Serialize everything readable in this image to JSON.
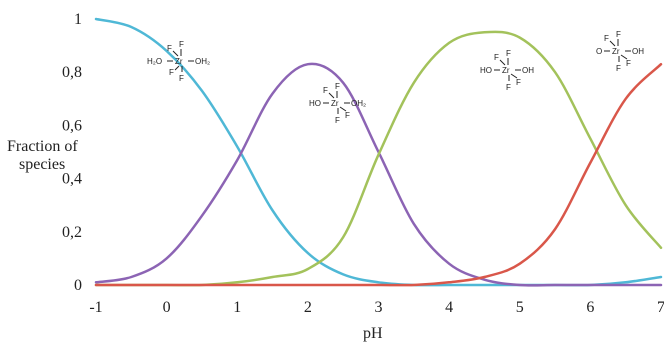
{
  "chart_data": {
    "type": "line",
    "xlabel": "pH",
    "ylabel_lines": [
      "Fraction of",
      "species"
    ],
    "xlim": [
      -1,
      7
    ],
    "ylim": [
      0,
      1
    ],
    "x_ticks": [
      -1,
      0,
      1,
      2,
      3,
      4,
      5,
      6,
      7
    ],
    "x_tick_labels": [
      "-1",
      "0",
      "1",
      "2",
      "3",
      "4",
      "5",
      "6",
      "7"
    ],
    "y_ticks": [
      0,
      0.2,
      0.4,
      0.6,
      0.8,
      1
    ],
    "y_tick_labels": [
      "0",
      "0,2",
      "0,4",
      "0,6",
      "0,8",
      "1"
    ],
    "grid": false,
    "legend": "none",
    "x": [
      -1,
      -0.5,
      0,
      0.5,
      1,
      1.5,
      2,
      2.5,
      3,
      3.5,
      4,
      4.5,
      5,
      5.5,
      6,
      6.5,
      7
    ],
    "series": [
      {
        "color": "#4fb8d6",
        "values": [
          1.0,
          0.97,
          0.88,
          0.73,
          0.52,
          0.28,
          0.12,
          0.04,
          0.01,
          0.0,
          0.0,
          0.0,
          0.0,
          0.0,
          0.0,
          0.01,
          0.03
        ]
      },
      {
        "color": "#8c64b4",
        "values": [
          0.01,
          0.03,
          0.1,
          0.26,
          0.47,
          0.72,
          0.83,
          0.76,
          0.5,
          0.23,
          0.08,
          0.02,
          0.0,
          0.0,
          0.0,
          0.0,
          0.0
        ]
      },
      {
        "color": "#a3c25b",
        "values": [
          0.0,
          0.0,
          0.0,
          0.0,
          0.01,
          0.03,
          0.06,
          0.18,
          0.49,
          0.76,
          0.91,
          0.95,
          0.93,
          0.8,
          0.55,
          0.3,
          0.14
        ]
      },
      {
        "color": "#d9574a",
        "values": [
          0.0,
          0.0,
          0.0,
          0.0,
          0.0,
          0.0,
          0.0,
          0.0,
          0.0,
          0.0,
          0.01,
          0.03,
          0.08,
          0.21,
          0.46,
          0.7,
          0.83
        ]
      }
    ],
    "species_labels": [
      {
        "left": "H₂O",
        "right": "OH₂",
        "top": "F",
        "upper_left": "F",
        "lower_left": "F",
        "bottom": "F"
      },
      {
        "left": "HO",
        "right": "OH₂",
        "top": "F",
        "upper_left": "F",
        "lower_left": "F",
        "bottom": "F"
      },
      {
        "left": "HO",
        "right": "OH",
        "top": "F",
        "upper_left": "F",
        "lower_left": "F",
        "bottom": "F"
      },
      {
        "left": "O",
        "right": "OH",
        "top": "F",
        "upper_left": "F",
        "lower_left": "F",
        "bottom": "F"
      }
    ],
    "center_atom": "Zr"
  }
}
